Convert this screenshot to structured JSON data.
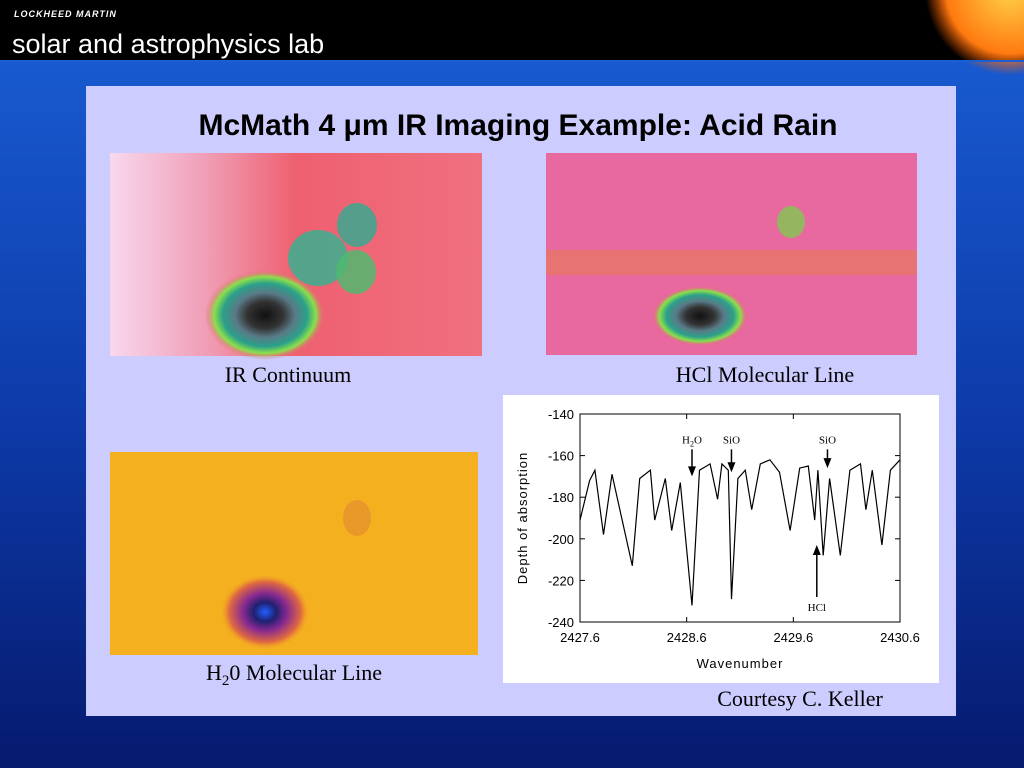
{
  "header": {
    "company": "LOCKHEED MARTIN",
    "lab": "solar and astrophysics lab"
  },
  "slide": {
    "title": "McMath 4 μm IR Imaging Example: Acid Rain",
    "captions": {
      "ir_continuum": "IR Continuum",
      "hcl": "HCl Molecular Line",
      "h2o": [
        "H",
        "2",
        "0 Molecular Line"
      ],
      "courtesy": "Courtesy C. Keller"
    }
  },
  "chart_data": {
    "type": "line",
    "color": "#000000",
    "ylabel": "Depth of absorption",
    "xlabel": "Wavenumber",
    "xlim": [
      2427.6,
      2430.6
    ],
    "xticks": [
      2427.6,
      2428.6,
      2429.6,
      2430.6
    ],
    "ylim": [
      -240,
      -140
    ],
    "yticks": [
      -140,
      -160,
      -180,
      -200,
      -220,
      -240
    ],
    "x": [
      2427.6,
      2427.69,
      2427.74,
      2427.82,
      2427.9,
      2428.09,
      2428.16,
      2428.26,
      2428.3,
      2428.4,
      2428.46,
      2428.54,
      2428.65,
      2428.72,
      2428.82,
      2428.89,
      2428.93,
      2428.99,
      2429.02,
      2429.08,
      2429.15,
      2429.21,
      2429.29,
      2429.38,
      2429.47,
      2429.57,
      2429.66,
      2429.74,
      2429.8,
      2429.83,
      2429.88,
      2429.94,
      2430.04,
      2430.13,
      2430.23,
      2430.28,
      2430.34,
      2430.43,
      2430.51,
      2430.6
    ],
    "values": [
      -191,
      -172,
      -167,
      -198,
      -169,
      -213,
      -171,
      -167,
      -191,
      -171,
      -196,
      -173,
      -232,
      -167,
      -164,
      -181,
      -164,
      -167,
      -229,
      -171,
      -167,
      -186,
      -164,
      -162,
      -168,
      -196,
      -166,
      -165,
      -191,
      -167,
      -208,
      -171,
      -208,
      -167,
      -164,
      -186,
      -167,
      -203,
      -167,
      -162
    ],
    "annotations": [
      {
        "label": [
          "H",
          "2",
          "O"
        ],
        "x": 2428.65,
        "y": -170,
        "from": -157
      },
      {
        "label": "SiO",
        "x": 2429.02,
        "y": -168,
        "from": -157
      },
      {
        "label": "SiO",
        "x": 2429.92,
        "y": -166,
        "from": -157
      },
      {
        "label": "HCl",
        "x": 2429.82,
        "y": -203,
        "from": -228
      }
    ]
  }
}
